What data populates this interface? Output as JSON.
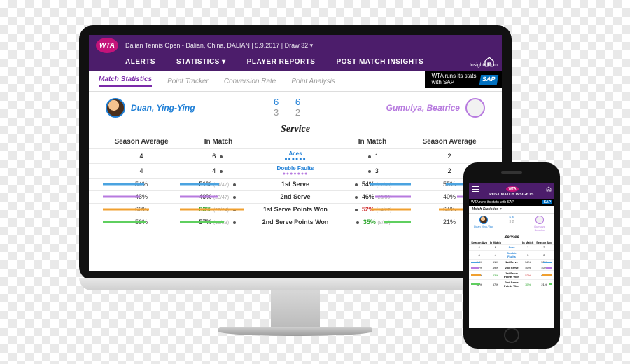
{
  "colors": {
    "brand_purple": "#4c1d6b",
    "brand_pink": "#c4137a",
    "player1": "#1f7fd6",
    "player2": "#b77adf",
    "green": "#29a329",
    "red": "#d03030",
    "sap_blue": "#0070c0",
    "gray_text": "#9a9a9a",
    "bar_orange": "#f0a030",
    "bar_blue": "#4aa3e0",
    "bar_purple": "#b77adf",
    "bar_green": "#5fcf5f"
  },
  "header": {
    "logo": "WTA",
    "event": "Dalian Tennis Open - Dalian, China, DALIAN | 5.9.2017 | Draw 32",
    "nav": {
      "alerts": "ALERTS",
      "statistics": "STATISTICS",
      "player_reports": "PLAYER REPORTS",
      "post_match": "POST MATCH INSIGHTS"
    }
  },
  "sap": {
    "insights_from": "Insights from",
    "line1": "WTA runs its stats",
    "line2": "with SAP",
    "logo": "SAP"
  },
  "tabs": {
    "match_stats": "Match Statistics",
    "point_tracker": "Point Tracker",
    "conversion": "Conversion Rate",
    "point_analysis": "Point Analysis"
  },
  "players": {
    "p1": "Duan, Ying-Ying",
    "p2": "Gumulya, Beatrice",
    "score_set1": "6   6",
    "score_set2": "3   2"
  },
  "section": {
    "title": "Service",
    "col_season": "Season Average",
    "col_match": "In Match"
  },
  "rows": {
    "aces": {
      "label": "Aces",
      "dots": "●●●●●●",
      "p1_season": "4",
      "p1_match": "6",
      "p2_match": "1",
      "p2_season": "2"
    },
    "df": {
      "label": "Double Faults",
      "dots": "●●●●●●●",
      "p1_season": "4",
      "p1_match": "4",
      "p2_match": "3",
      "p2_season": "2"
    },
    "serve1": {
      "label": "1st Serve",
      "p1_season": "54%",
      "p1_match": "51%",
      "p1_sub": "(24/47)",
      "p2_match": "54%",
      "p2_sub": "(27/50)",
      "p2_season": "55%",
      "p1_bar_w": 54,
      "p2_bar_w": 55,
      "p1_mbar_w": 51,
      "p2_mbar_w": 54,
      "bar_color": "#4aa3e0"
    },
    "serve2": {
      "label": "2nd Serve",
      "p1_season": "48%",
      "p1_match": "49%",
      "p1_sub": "(23/47)",
      "p2_match": "46%",
      "p2_sub": "(23/50)",
      "p2_season": "40%",
      "p1_bar_w": 48,
      "p2_bar_w": 40,
      "p1_mbar_w": 49,
      "p2_mbar_w": 46,
      "bar_color": "#b77adf"
    },
    "s1pw": {
      "label": "1st Serve Points Won",
      "p1_season": "60%",
      "p1_match": "83%",
      "p1_sub": "(20/24)",
      "p1_color": "green",
      "p2_match": "52%",
      "p2_sub": "(14/27)",
      "p2_color": "red",
      "p2_season": "64%",
      "p1_bar_w": 60,
      "p2_bar_w": 64,
      "p1_mbar_w": 83,
      "p2_mbar_w": 52,
      "bar_color": "#f0a030"
    },
    "s2pw": {
      "label": "2nd Serve Points Won",
      "p1_season": "56%",
      "p1_match": "57%",
      "p1_sub": "(13/23)",
      "p2_match": "35%",
      "p2_sub": "(8/23)",
      "p2_color": "green",
      "p2_season": "21%",
      "p1_bar_w": 56,
      "p2_bar_w": 21,
      "p1_mbar_w": 57,
      "p2_mbar_w": 35,
      "bar_color": "#5fcf5f"
    }
  },
  "phone": {
    "title": "POST MATCH INSIGHTS",
    "sap_text": "WTA runs its stats with SAP",
    "tab": "Match Statistics",
    "p1": "Duan Ying-Ying",
    "p2": "Gumulya Beatrice",
    "cols": {
      "c1": "Season Avg",
      "c2": "In Match",
      "c3": "In Match",
      "c4": "Season Avg"
    },
    "section": "Service"
  }
}
